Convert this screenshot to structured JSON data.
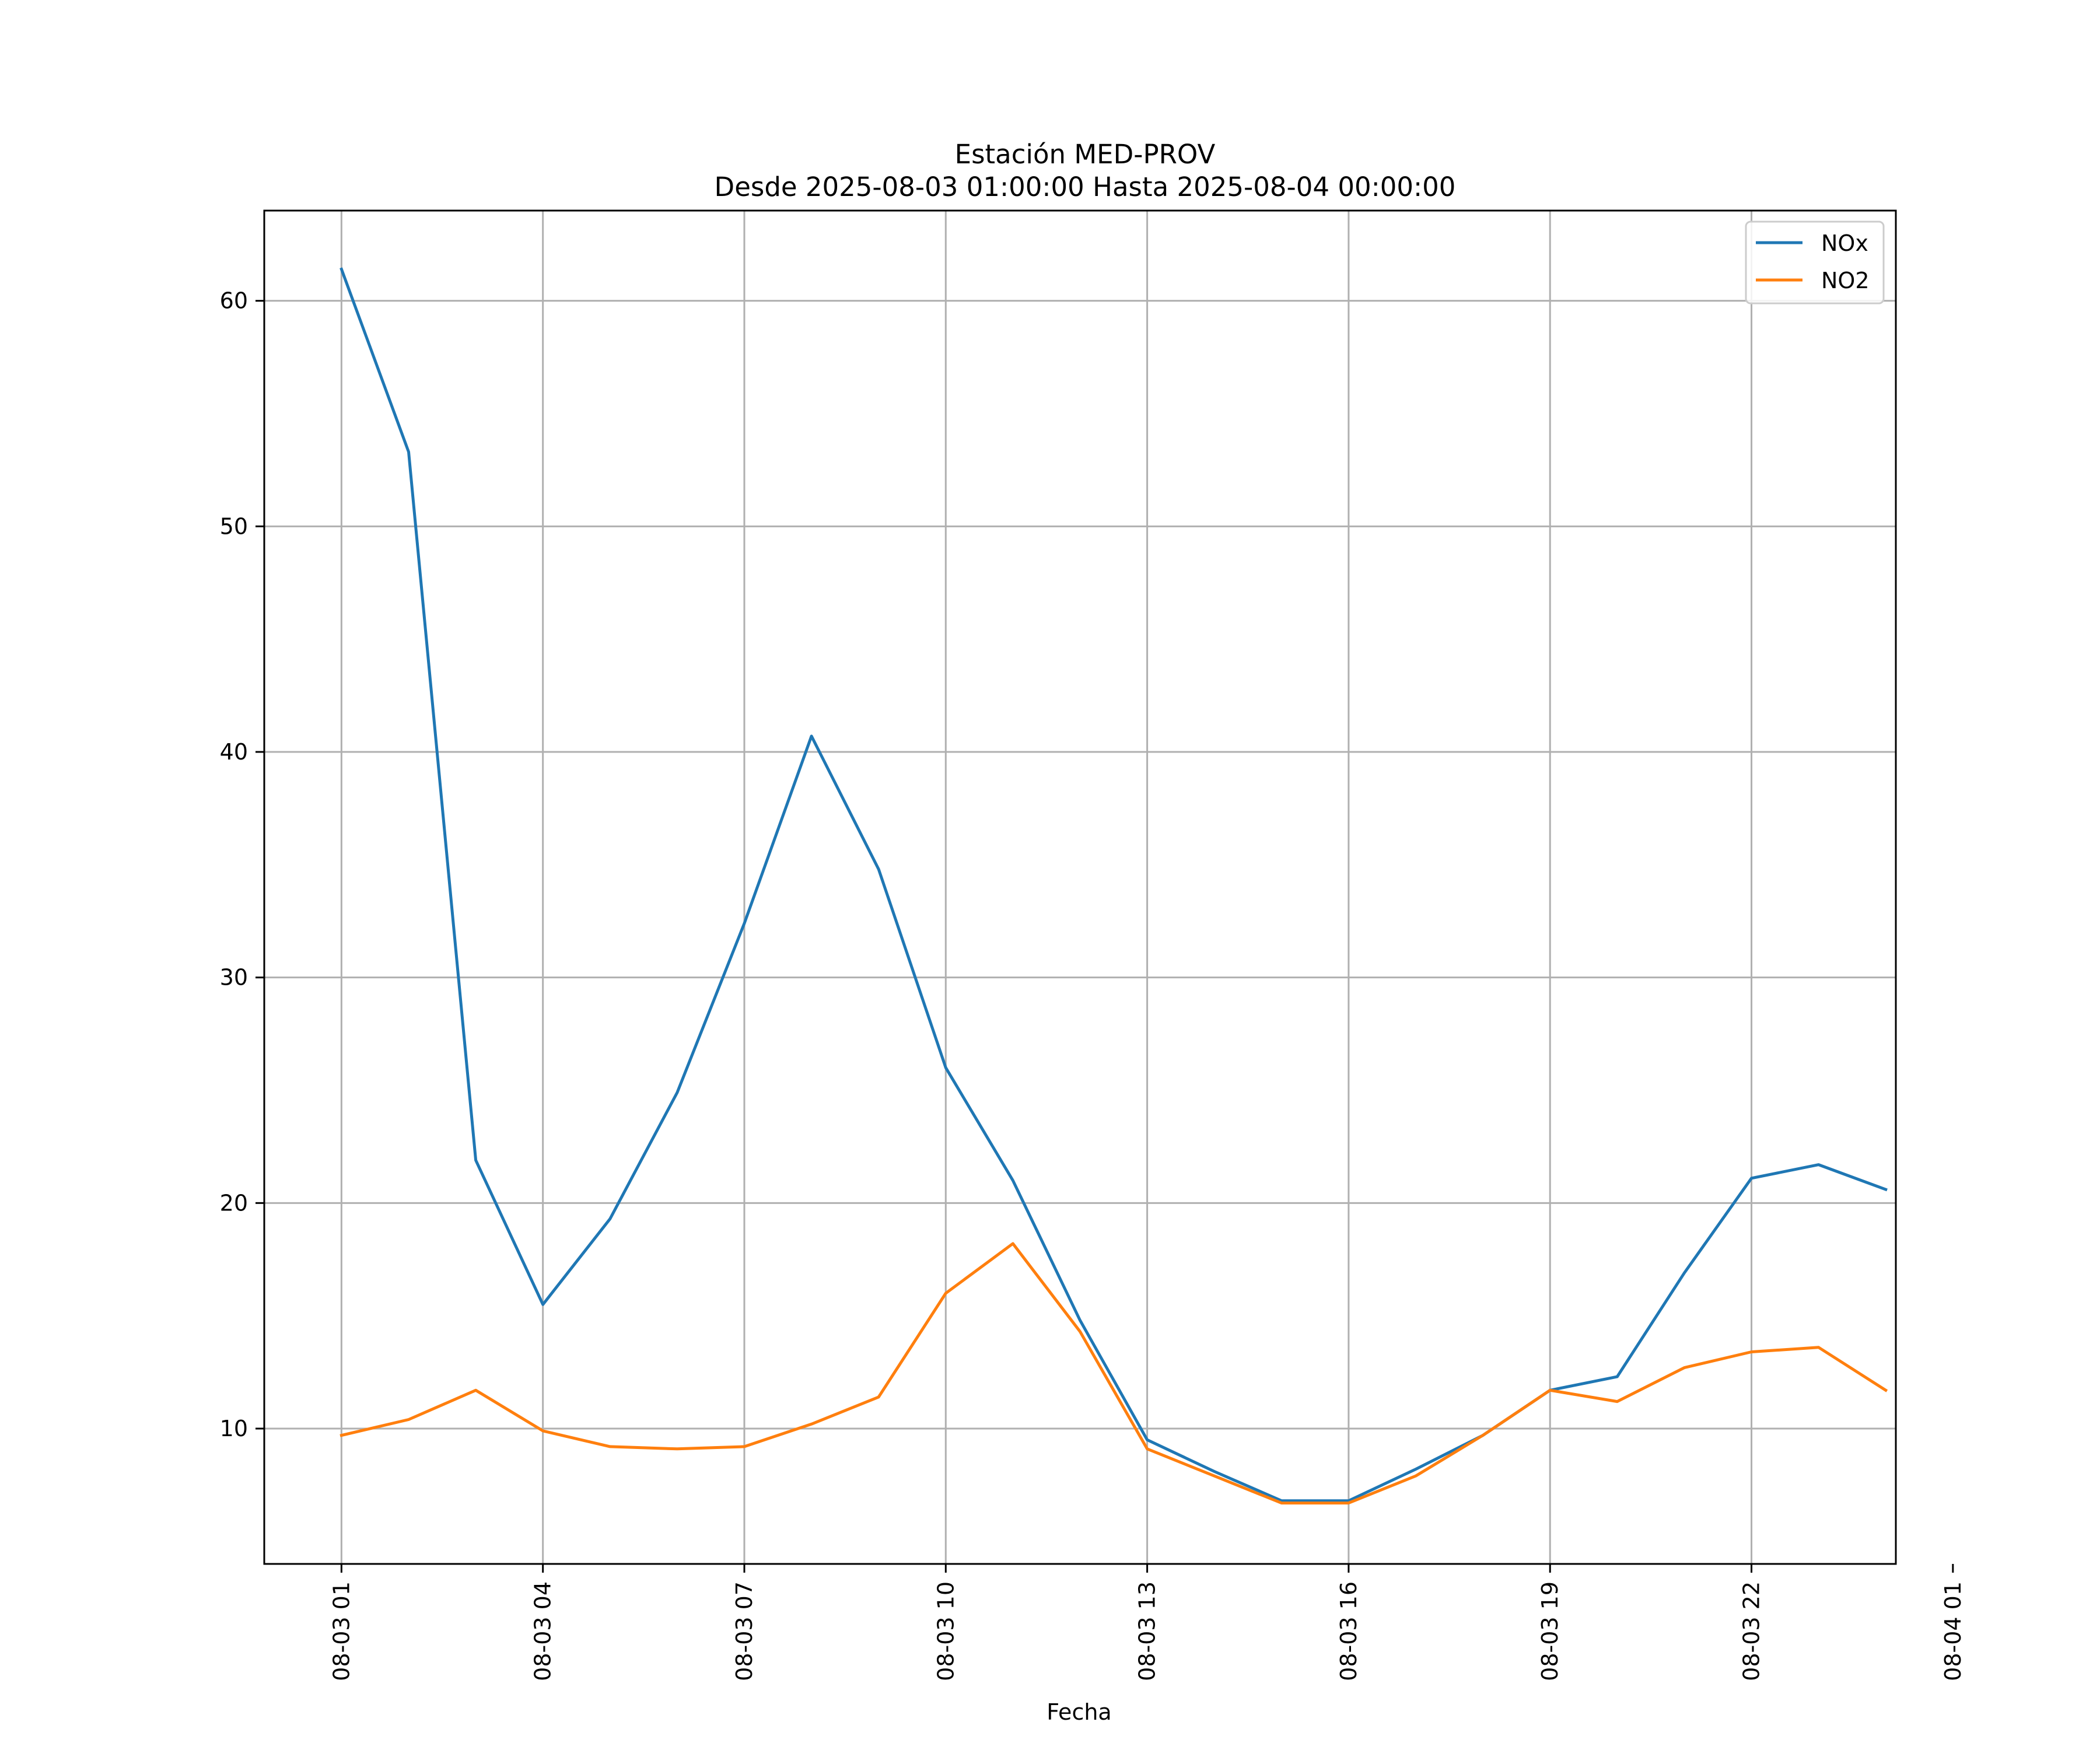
{
  "chart_data": {
    "type": "line",
    "title_line1": "Estación MED-PROV",
    "title_line2": "Desde 2025-08-03 01:00:00 Hasta 2025-08-04 00:00:00",
    "xlabel": "Fecha",
    "ylabel": "",
    "grid": true,
    "legend_position": "top-right",
    "x_hours": [
      1,
      2,
      3,
      4,
      5,
      6,
      7,
      8,
      9,
      10,
      11,
      12,
      13,
      14,
      15,
      16,
      17,
      18,
      19,
      20,
      21,
      22,
      23,
      24
    ],
    "xlim": [
      -0.15,
      24.15
    ],
    "ylim": [
      4,
      64
    ],
    "xticks": [
      {
        "hour": 1,
        "label": "08-03 01"
      },
      {
        "hour": 4,
        "label": "08-03 04"
      },
      {
        "hour": 7,
        "label": "08-03 07"
      },
      {
        "hour": 10,
        "label": "08-03 10"
      },
      {
        "hour": 13,
        "label": "08-03 13"
      },
      {
        "hour": 16,
        "label": "08-03 16"
      },
      {
        "hour": 19,
        "label": "08-03 19"
      },
      {
        "hour": 22,
        "label": "08-03 22"
      },
      {
        "hour": 25,
        "label": "08-04 01"
      }
    ],
    "yticks": [
      {
        "value": 10,
        "label": "10"
      },
      {
        "value": 20,
        "label": "20"
      },
      {
        "value": 30,
        "label": "30"
      },
      {
        "value": 40,
        "label": "40"
      },
      {
        "value": 50,
        "label": "50"
      },
      {
        "value": 60,
        "label": "60"
      }
    ],
    "series": [
      {
        "name": "NOx",
        "color": "#1f77b4",
        "values": [
          61.4,
          53.3,
          21.9,
          15.5,
          19.3,
          24.9,
          32.4,
          40.7,
          34.8,
          26.0,
          21.0,
          14.8,
          9.5,
          8.1,
          6.8,
          6.8,
          8.2,
          9.7,
          11.7,
          12.3,
          16.9,
          21.1,
          21.7,
          20.6
        ]
      },
      {
        "name": "NO2",
        "color": "#ff7f0e",
        "values": [
          9.7,
          10.4,
          11.7,
          9.9,
          9.2,
          9.1,
          9.2,
          10.2,
          11.4,
          16.0,
          18.2,
          14.3,
          9.1,
          7.9,
          6.7,
          6.7,
          7.9,
          9.7,
          11.7,
          11.2,
          12.7,
          13.4,
          13.6,
          11.7
        ]
      }
    ]
  }
}
